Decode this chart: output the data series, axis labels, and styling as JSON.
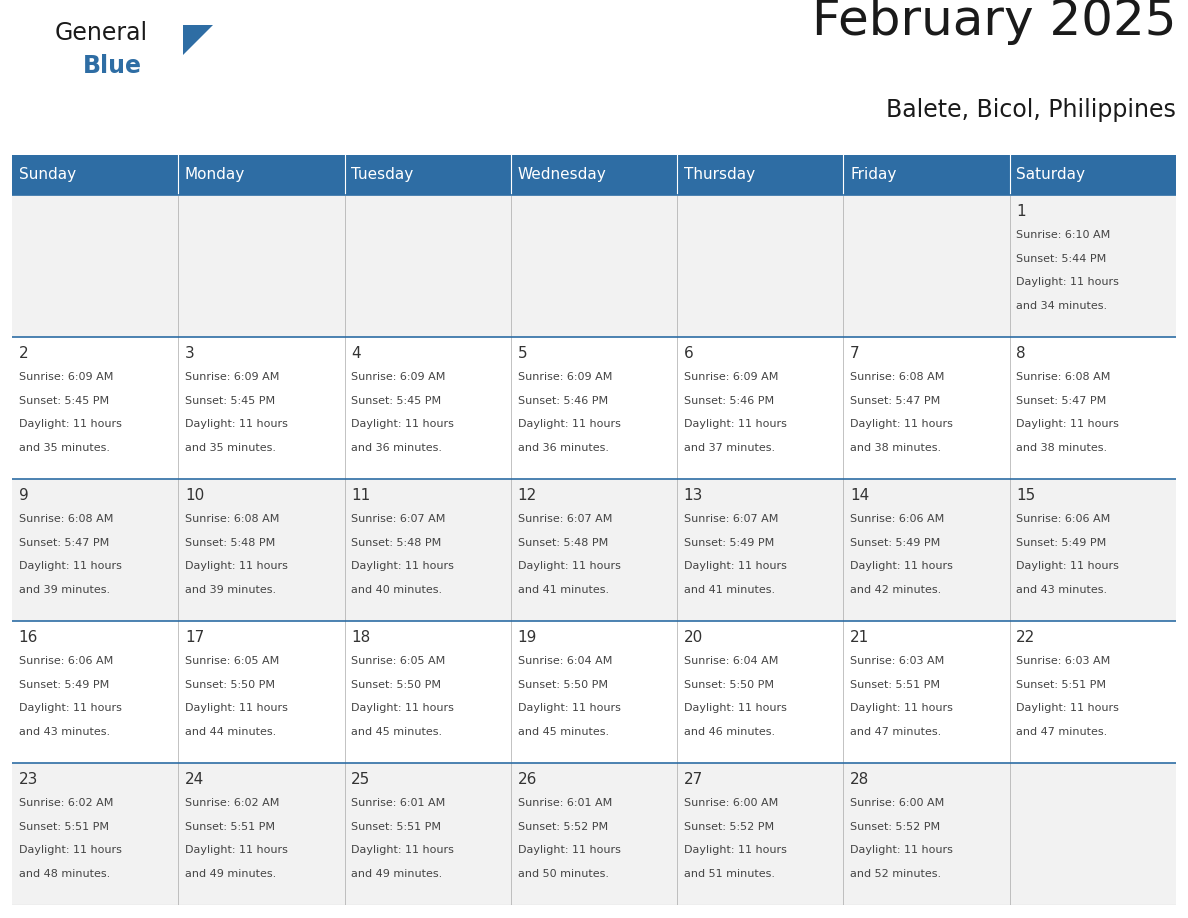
{
  "title": "February 2025",
  "subtitle": "Balete, Bicol, Philippines",
  "days_of_week": [
    "Sunday",
    "Monday",
    "Tuesday",
    "Wednesday",
    "Thursday",
    "Friday",
    "Saturday"
  ],
  "header_bg": "#2E6DA4",
  "header_text": "#FFFFFF",
  "cell_bg_row0": "#F2F2F2",
  "cell_bg_row1": "#FFFFFF",
  "cell_bg_row2": "#F2F2F2",
  "cell_bg_row3": "#FFFFFF",
  "cell_bg_row4": "#F2F2F2",
  "cell_border": "#AAAAAA",
  "row_border": "#2E6DA4",
  "day_num_color": "#333333",
  "cell_text_color": "#444444",
  "title_color": "#1a1a1a",
  "subtitle_color": "#1a1a1a",
  "logo_general_color": "#1a1a1a",
  "logo_blue_color": "#2E6DA4",
  "calendar_data": [
    {
      "day": 1,
      "row": 0,
      "col": 6,
      "sunrise": "6:10 AM",
      "sunset": "5:44 PM",
      "daylight_h": "11 hours",
      "daylight_m": "and 34 minutes."
    },
    {
      "day": 2,
      "row": 1,
      "col": 0,
      "sunrise": "6:09 AM",
      "sunset": "5:45 PM",
      "daylight_h": "11 hours",
      "daylight_m": "and 35 minutes."
    },
    {
      "day": 3,
      "row": 1,
      "col": 1,
      "sunrise": "6:09 AM",
      "sunset": "5:45 PM",
      "daylight_h": "11 hours",
      "daylight_m": "and 35 minutes."
    },
    {
      "day": 4,
      "row": 1,
      "col": 2,
      "sunrise": "6:09 AM",
      "sunset": "5:45 PM",
      "daylight_h": "11 hours",
      "daylight_m": "and 36 minutes."
    },
    {
      "day": 5,
      "row": 1,
      "col": 3,
      "sunrise": "6:09 AM",
      "sunset": "5:46 PM",
      "daylight_h": "11 hours",
      "daylight_m": "and 36 minutes."
    },
    {
      "day": 6,
      "row": 1,
      "col": 4,
      "sunrise": "6:09 AM",
      "sunset": "5:46 PM",
      "daylight_h": "11 hours",
      "daylight_m": "and 37 minutes."
    },
    {
      "day": 7,
      "row": 1,
      "col": 5,
      "sunrise": "6:08 AM",
      "sunset": "5:47 PM",
      "daylight_h": "11 hours",
      "daylight_m": "and 38 minutes."
    },
    {
      "day": 8,
      "row": 1,
      "col": 6,
      "sunrise": "6:08 AM",
      "sunset": "5:47 PM",
      "daylight_h": "11 hours",
      "daylight_m": "and 38 minutes."
    },
    {
      "day": 9,
      "row": 2,
      "col": 0,
      "sunrise": "6:08 AM",
      "sunset": "5:47 PM",
      "daylight_h": "11 hours",
      "daylight_m": "and 39 minutes."
    },
    {
      "day": 10,
      "row": 2,
      "col": 1,
      "sunrise": "6:08 AM",
      "sunset": "5:48 PM",
      "daylight_h": "11 hours",
      "daylight_m": "and 39 minutes."
    },
    {
      "day": 11,
      "row": 2,
      "col": 2,
      "sunrise": "6:07 AM",
      "sunset": "5:48 PM",
      "daylight_h": "11 hours",
      "daylight_m": "and 40 minutes."
    },
    {
      "day": 12,
      "row": 2,
      "col": 3,
      "sunrise": "6:07 AM",
      "sunset": "5:48 PM",
      "daylight_h": "11 hours",
      "daylight_m": "and 41 minutes."
    },
    {
      "day": 13,
      "row": 2,
      "col": 4,
      "sunrise": "6:07 AM",
      "sunset": "5:49 PM",
      "daylight_h": "11 hours",
      "daylight_m": "and 41 minutes."
    },
    {
      "day": 14,
      "row": 2,
      "col": 5,
      "sunrise": "6:06 AM",
      "sunset": "5:49 PM",
      "daylight_h": "11 hours",
      "daylight_m": "and 42 minutes."
    },
    {
      "day": 15,
      "row": 2,
      "col": 6,
      "sunrise": "6:06 AM",
      "sunset": "5:49 PM",
      "daylight_h": "11 hours",
      "daylight_m": "and 43 minutes."
    },
    {
      "day": 16,
      "row": 3,
      "col": 0,
      "sunrise": "6:06 AM",
      "sunset": "5:49 PM",
      "daylight_h": "11 hours",
      "daylight_m": "and 43 minutes."
    },
    {
      "day": 17,
      "row": 3,
      "col": 1,
      "sunrise": "6:05 AM",
      "sunset": "5:50 PM",
      "daylight_h": "11 hours",
      "daylight_m": "and 44 minutes."
    },
    {
      "day": 18,
      "row": 3,
      "col": 2,
      "sunrise": "6:05 AM",
      "sunset": "5:50 PM",
      "daylight_h": "11 hours",
      "daylight_m": "and 45 minutes."
    },
    {
      "day": 19,
      "row": 3,
      "col": 3,
      "sunrise": "6:04 AM",
      "sunset": "5:50 PM",
      "daylight_h": "11 hours",
      "daylight_m": "and 45 minutes."
    },
    {
      "day": 20,
      "row": 3,
      "col": 4,
      "sunrise": "6:04 AM",
      "sunset": "5:50 PM",
      "daylight_h": "11 hours",
      "daylight_m": "and 46 minutes."
    },
    {
      "day": 21,
      "row": 3,
      "col": 5,
      "sunrise": "6:03 AM",
      "sunset": "5:51 PM",
      "daylight_h": "11 hours",
      "daylight_m": "and 47 minutes."
    },
    {
      "day": 22,
      "row": 3,
      "col": 6,
      "sunrise": "6:03 AM",
      "sunset": "5:51 PM",
      "daylight_h": "11 hours",
      "daylight_m": "and 47 minutes."
    },
    {
      "day": 23,
      "row": 4,
      "col": 0,
      "sunrise": "6:02 AM",
      "sunset": "5:51 PM",
      "daylight_h": "11 hours",
      "daylight_m": "and 48 minutes."
    },
    {
      "day": 24,
      "row": 4,
      "col": 1,
      "sunrise": "6:02 AM",
      "sunset": "5:51 PM",
      "daylight_h": "11 hours",
      "daylight_m": "and 49 minutes."
    },
    {
      "day": 25,
      "row": 4,
      "col": 2,
      "sunrise": "6:01 AM",
      "sunset": "5:51 PM",
      "daylight_h": "11 hours",
      "daylight_m": "and 49 minutes."
    },
    {
      "day": 26,
      "row": 4,
      "col": 3,
      "sunrise": "6:01 AM",
      "sunset": "5:52 PM",
      "daylight_h": "11 hours",
      "daylight_m": "and 50 minutes."
    },
    {
      "day": 27,
      "row": 4,
      "col": 4,
      "sunrise": "6:00 AM",
      "sunset": "5:52 PM",
      "daylight_h": "11 hours",
      "daylight_m": "and 51 minutes."
    },
    {
      "day": 28,
      "row": 4,
      "col": 5,
      "sunrise": "6:00 AM",
      "sunset": "5:52 PM",
      "daylight_h": "11 hours",
      "daylight_m": "and 52 minutes."
    }
  ]
}
